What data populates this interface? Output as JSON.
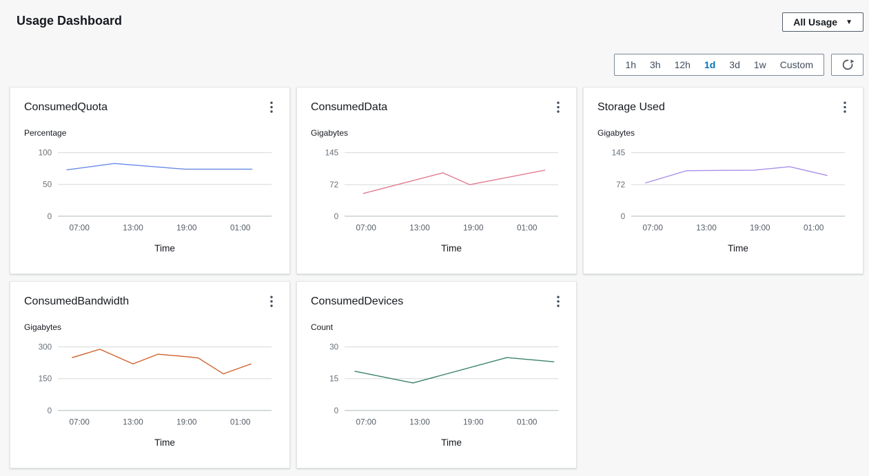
{
  "header": {
    "title": "Usage Dashboard",
    "dropdown_label": "All Usage",
    "dropdown_icon": "chevron-down"
  },
  "toolbar": {
    "ranges": [
      {
        "label": "1h",
        "selected": false
      },
      {
        "label": "3h",
        "selected": false
      },
      {
        "label": "12h",
        "selected": false
      },
      {
        "label": "1d",
        "selected": true
      },
      {
        "label": "3d",
        "selected": false
      },
      {
        "label": "1w",
        "selected": false
      },
      {
        "label": "Custom",
        "selected": false
      }
    ],
    "refresh_icon": "refresh"
  },
  "colors": {
    "accent_blue": "#0073bb",
    "page_background": "#f7f7f7",
    "card_background": "#ffffff",
    "gridline": "#d5d9d9",
    "zero_gridline": "#aeb7b9",
    "ytick_text": "#687078",
    "xtick_text": "#545b64"
  },
  "chart_data": [
    {
      "type": "line",
      "title": "ConsumedQuota",
      "ylabel": "Percentage",
      "xlabel": "Time",
      "line_color": "#688ae8",
      "yticks": [
        0,
        50,
        100
      ],
      "ylim": [
        0,
        100
      ],
      "xtick_hours": [
        7,
        13,
        19,
        25
      ],
      "xtick_labels": [
        "07:00",
        "13:00",
        "19:00",
        "01:00"
      ],
      "xlim_hours": [
        4.6,
        28.5
      ],
      "grid": true,
      "legend": false,
      "points": [
        [
          5.6,
          73
        ],
        [
          10.9,
          83
        ],
        [
          18.8,
          74
        ],
        [
          26.3,
          74
        ]
      ]
    },
    {
      "type": "line",
      "title": "ConsumedData",
      "ylabel": "Gigabytes",
      "xlabel": "Time",
      "line_color": "#e07a91",
      "yticks": [
        0,
        72,
        145
      ],
      "ylim": [
        0,
        145
      ],
      "xtick_hours": [
        7,
        13,
        19,
        25
      ],
      "xtick_labels": [
        "07:00",
        "13:00",
        "19:00",
        "01:00"
      ],
      "xlim_hours": [
        4.6,
        28.5
      ],
      "grid": true,
      "legend": false,
      "points": [
        [
          6.7,
          52
        ],
        [
          15.6,
          99
        ],
        [
          18.6,
          72
        ],
        [
          27.0,
          105
        ]
      ]
    },
    {
      "type": "line",
      "title": "Storage Used",
      "ylabel": "Gigabytes",
      "xlabel": "Time",
      "line_color": "#a98ee8",
      "yticks": [
        0,
        72,
        145
      ],
      "ylim": [
        0,
        145
      ],
      "xtick_hours": [
        7,
        13,
        19,
        25
      ],
      "xtick_labels": [
        "07:00",
        "13:00",
        "19:00",
        "01:00"
      ],
      "xlim_hours": [
        4.6,
        28.5
      ],
      "grid": true,
      "legend": false,
      "points": [
        [
          6.2,
          76
        ],
        [
          10.8,
          104
        ],
        [
          18.3,
          105
        ],
        [
          22.3,
          113
        ],
        [
          26.5,
          93
        ]
      ]
    },
    {
      "type": "line",
      "title": "ConsumedBandwidth",
      "ylabel": "Gigabytes",
      "xlabel": "Time",
      "line_color": "#cf5f28",
      "yticks": [
        0,
        150,
        300
      ],
      "ylim": [
        0,
        300
      ],
      "xtick_hours": [
        7,
        13,
        19,
        25
      ],
      "xtick_labels": [
        "07:00",
        "13:00",
        "19:00",
        "01:00"
      ],
      "xlim_hours": [
        4.6,
        28.5
      ],
      "grid": true,
      "legend": false,
      "points": [
        [
          6.2,
          250
        ],
        [
          9.3,
          289
        ],
        [
          13.0,
          220
        ],
        [
          15.8,
          266
        ],
        [
          19.2,
          253
        ],
        [
          20.3,
          248
        ],
        [
          23.1,
          173
        ],
        [
          26.2,
          220
        ]
      ]
    },
    {
      "type": "line",
      "title": "ConsumedDevices",
      "ylabel": "Count",
      "xlabel": "Time",
      "line_color": "#3a8268",
      "yticks": [
        0,
        15,
        30
      ],
      "ylim": [
        0,
        30
      ],
      "xtick_hours": [
        7,
        13,
        19,
        25
      ],
      "xtick_labels": [
        "07:00",
        "13:00",
        "19:00",
        "01:00"
      ],
      "xlim_hours": [
        4.6,
        28.5
      ],
      "grid": true,
      "legend": false,
      "points": [
        [
          5.75,
          18.5
        ],
        [
          12.25,
          13
        ],
        [
          22.75,
          25
        ],
        [
          28.0,
          23
        ]
      ]
    }
  ]
}
